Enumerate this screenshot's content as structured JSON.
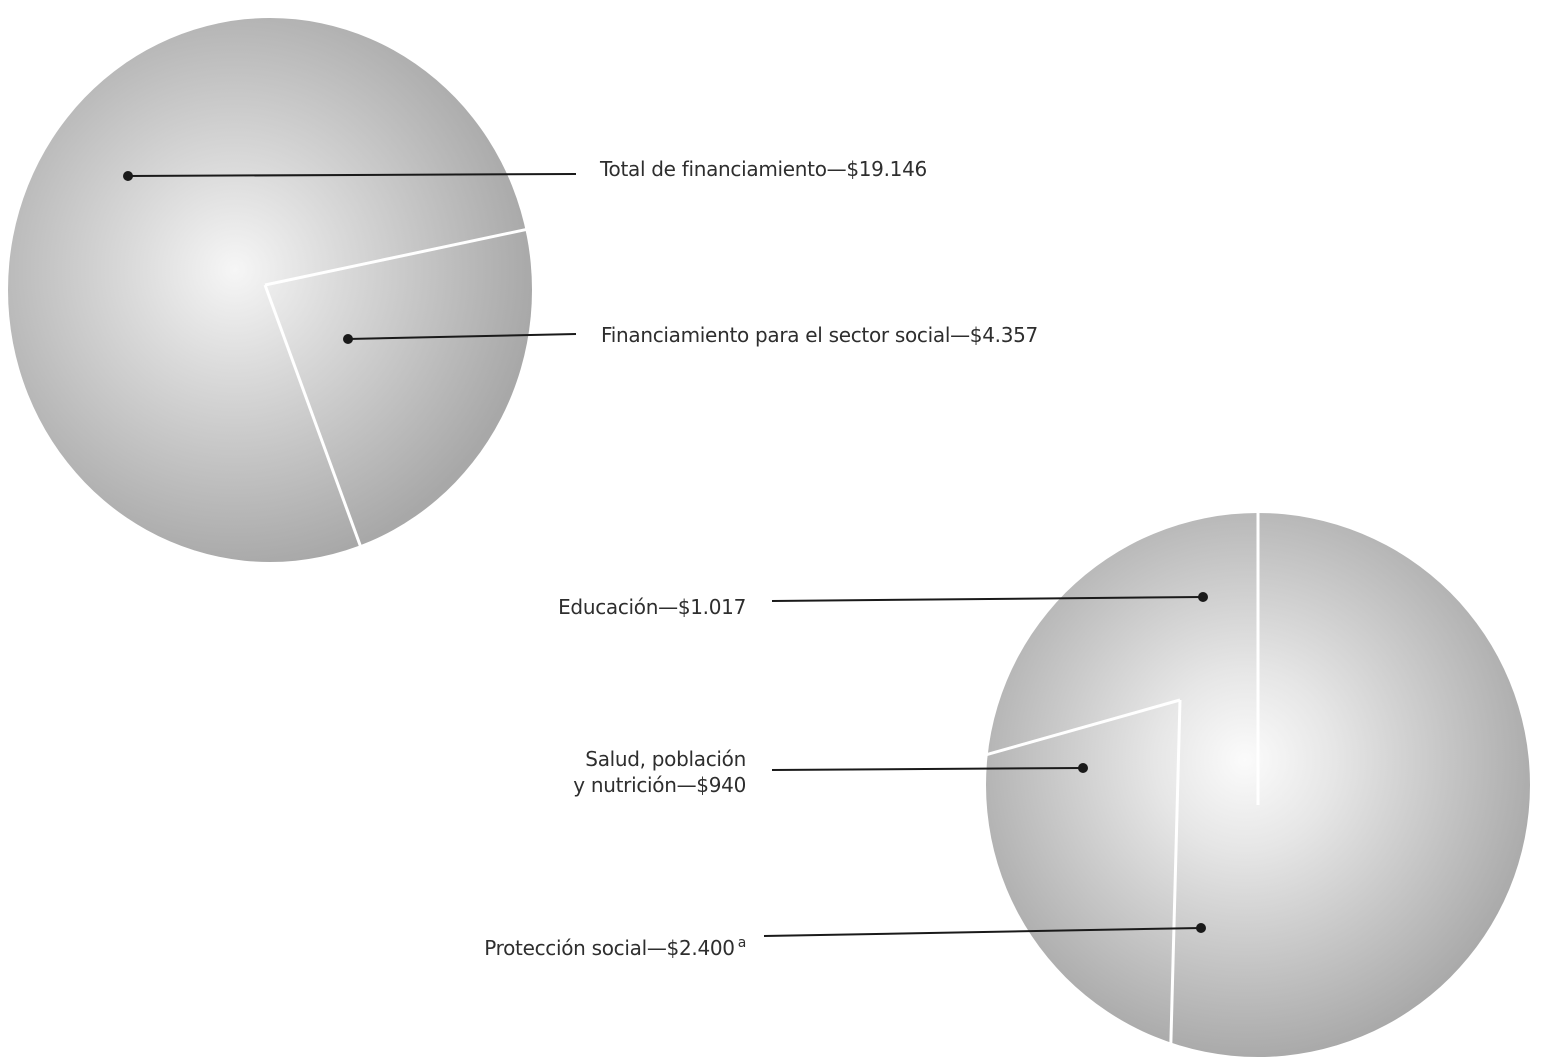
{
  "chart_data": [
    {
      "type": "pie",
      "title": "",
      "slices": [
        {
          "label": "Total de financiamiento",
          "value": 19146,
          "display": "Total de financiamiento—$19.146"
        },
        {
          "label": "Financiamiento para el sector social",
          "value": 4357,
          "display": "Financiamiento para el sector social—$4.357"
        }
      ]
    },
    {
      "type": "pie",
      "title": "",
      "slices": [
        {
          "label": "Educación",
          "value": 1017,
          "display": "Educación—$1.017"
        },
        {
          "label": "Salud, población y nutrición",
          "value": 940,
          "display_lines": [
            "Salud, población",
            "y nutrición—$940"
          ]
        },
        {
          "label": "Protección social",
          "value": 2400,
          "display": "Protección social—$2.400",
          "footnote": "a"
        }
      ]
    }
  ],
  "colors": {
    "pie_edge": "#a9a9a9",
    "pie_light": "#f4f4f4",
    "pie_mid": "#cfcfcf",
    "divider": "#ffffff",
    "leader": "#1a1a1a"
  }
}
